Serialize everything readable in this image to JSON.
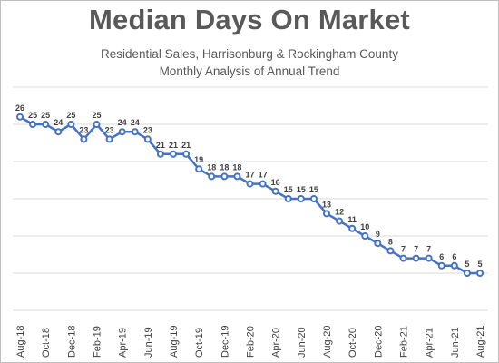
{
  "chart_data": {
    "type": "line",
    "title": "Median Days On Market",
    "subtitle": "Residential Sales, Harrisonburg & Rockingham County",
    "subtitle2": "Monthly Analysis of Annual Trend",
    "xlabel": "",
    "ylabel": "",
    "ylim": [
      0,
      30
    ],
    "grid": true,
    "legend": "none",
    "x": [
      "Aug-18",
      "Sep-18",
      "Oct-18",
      "Nov-18",
      "Dec-18",
      "Jan-19",
      "Feb-19",
      "Mar-19",
      "Apr-19",
      "May-19",
      "Jun-19",
      "Jul-19",
      "Aug-19",
      "Sep-19",
      "Oct-19",
      "Nov-19",
      "Dec-19",
      "Jan-20",
      "Feb-20",
      "Mar-20",
      "Apr-20",
      "May-20",
      "Jun-20",
      "Jul-20",
      "Aug-20",
      "Sep-20",
      "Oct-20",
      "Nov-20",
      "Dec-20",
      "Jan-21",
      "Feb-21",
      "Mar-21",
      "Apr-21",
      "May-21",
      "Jun-21",
      "Jul-21",
      "Aug-21"
    ],
    "x_tick_labels": [
      "Aug-18",
      "Oct-18",
      "Dec-18",
      "Feb-19",
      "Apr-19",
      "Jun-19",
      "Aug-19",
      "Oct-19",
      "Dec-19",
      "Feb-20",
      "Apr-20",
      "Jun-20",
      "Aug-20",
      "Oct-20",
      "Dec-20",
      "Feb-21",
      "Apr-21",
      "Jun-21",
      "Aug-21"
    ],
    "series": [
      {
        "color": "#4472c4",
        "values": [
          26,
          25,
          25,
          24,
          25,
          23,
          25,
          23,
          24,
          24,
          23,
          21,
          21,
          21,
          19,
          18,
          18,
          18,
          17,
          17,
          16,
          15,
          15,
          15,
          13,
          12,
          11,
          10,
          9,
          8,
          7,
          7,
          7,
          6,
          6,
          5,
          5
        ]
      }
    ]
  }
}
